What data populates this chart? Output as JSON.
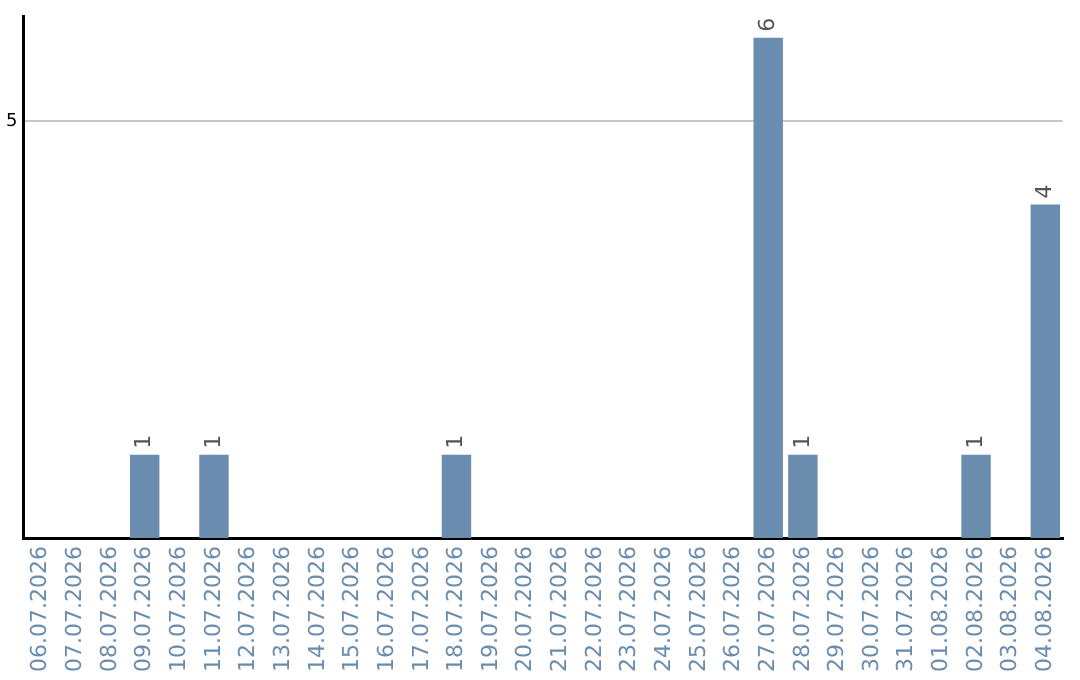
{
  "chart_data": {
    "type": "bar",
    "categories": [
      "06.07.2026",
      "07.07.2026",
      "08.07.2026",
      "09.07.2026",
      "10.07.2026",
      "11.07.2026",
      "12.07.2026",
      "13.07.2026",
      "14.07.2026",
      "15.07.2026",
      "16.07.2026",
      "17.07.2026",
      "18.07.2026",
      "19.07.2026",
      "20.07.2026",
      "21.07.2026",
      "22.07.2026",
      "23.07.2026",
      "24.07.2026",
      "25.07.2026",
      "26.07.2026",
      "27.07.2026",
      "28.07.2026",
      "29.07.2026",
      "30.07.2026",
      "31.07.2026",
      "01.08.2026",
      "02.08.2026",
      "03.08.2026",
      "04.08.2026"
    ],
    "values": [
      0,
      0,
      0,
      1,
      0,
      1,
      0,
      0,
      0,
      0,
      0,
      0,
      1,
      0,
      0,
      0,
      0,
      0,
      0,
      0,
      0,
      6,
      1,
      0,
      0,
      0,
      0,
      1,
      0,
      4
    ],
    "value_labels": [
      null,
      null,
      null,
      "1",
      null,
      "1",
      null,
      null,
      null,
      null,
      null,
      null,
      "1",
      null,
      null,
      null,
      null,
      null,
      null,
      null,
      null,
      "6",
      "1",
      null,
      null,
      null,
      null,
      "1",
      null,
      "4"
    ],
    "color": "#6a8caf",
    "ylim": [
      0,
      6.25
    ],
    "yticks": [
      5
    ],
    "grid": "y",
    "legend": false
  }
}
